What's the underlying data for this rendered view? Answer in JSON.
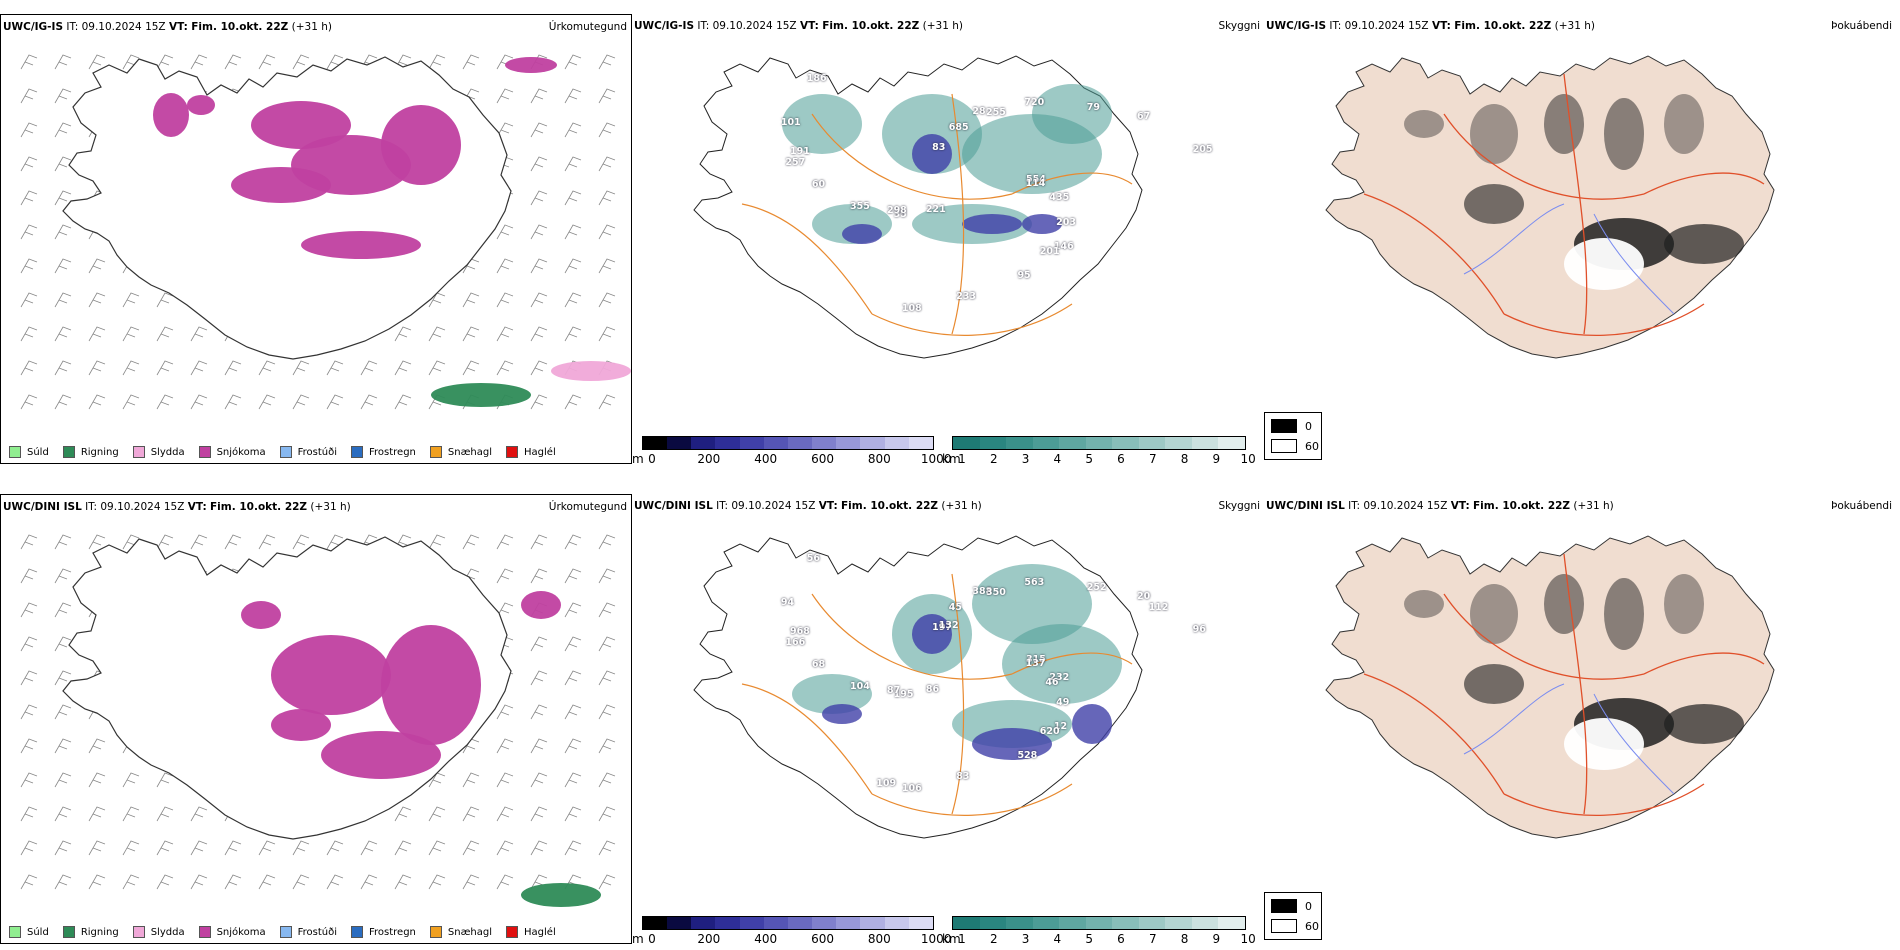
{
  "rows": [
    {
      "id": "igis",
      "model": "UWC/IG-IS",
      "it_label": "IT:",
      "it_value": "09.10.2024 15Z",
      "vt_label": "VT:",
      "vt_value": "Fim. 10.okt. 22Z",
      "lead": "(+31 h)",
      "panels": {
        "precip": {
          "variable": "Úrkomutegund"
        },
        "vis": {
          "variable": "Skyggni",
          "labels": [
            "554",
            "35",
            "28",
            "146",
            "257",
            "67",
            "108",
            "83",
            "435",
            "355",
            "720",
            "95",
            "101",
            "205",
            "221",
            "685",
            "203",
            "60",
            "79",
            "233",
            "186",
            "114",
            "298",
            "255",
            "201",
            "191"
          ]
        },
        "fog": {
          "variable": "Þokuábendi"
        }
      }
    },
    {
      "id": "dini",
      "model": "UWC/DINI ISL",
      "it_label": "IT:",
      "it_value": "09.10.2024 15Z",
      "vt_label": "VT:",
      "vt_value": "Fim. 10.okt. 22Z",
      "lead": "(+31 h)",
      "panels": {
        "precip": {
          "variable": "Úrkomutegund"
        },
        "vis": {
          "variable": "Skyggni",
          "labels": [
            "315",
            "195",
            "388",
            "12",
            "166",
            "20",
            "106",
            "197",
            "232",
            "104",
            "563",
            "528",
            "94",
            "96",
            "86",
            "45",
            "49",
            "68",
            "252",
            "83",
            "56",
            "137",
            "87",
            "350",
            "620",
            "968",
            "112",
            "109",
            "132",
            "46"
          ]
        },
        "fog": {
          "variable": "Þokuábendi"
        }
      }
    }
  ],
  "precip_legend": [
    {
      "label": "Súld",
      "color": "#90ee90"
    },
    {
      "label": "Rigning",
      "color": "#2e8b57"
    },
    {
      "label": "Slydda",
      "color": "#f0a8d8"
    },
    {
      "label": "Snjókoma",
      "color": "#c040a0"
    },
    {
      "label": "Frostúði",
      "color": "#87b8f0"
    },
    {
      "label": "Frostregn",
      "color": "#2a6cc0"
    },
    {
      "label": "Snæhagl",
      "color": "#f0a020"
    },
    {
      "label": "Haglél",
      "color": "#e01010"
    }
  ],
  "ceiling_bar": {
    "unit": "m",
    "ticks": [
      "0",
      "200",
      "400",
      "600",
      "800",
      "1000"
    ],
    "colors": [
      "#000000",
      "#0a0a40",
      "#1f1f80",
      "#2e2e98",
      "#4040a8",
      "#5555b5",
      "#6a6ac0",
      "#8080cc",
      "#9898d8",
      "#b0b0e2",
      "#c8c8ec",
      "#dcdcf4"
    ]
  },
  "visibility_bar": {
    "unit": "km",
    "ticks": [
      "1",
      "2",
      "3",
      "4",
      "5",
      "6",
      "7",
      "8",
      "9",
      "10"
    ],
    "colors": [
      "#1e7a74",
      "#2a8680",
      "#3a918a",
      "#4c9c96",
      "#5fa7a1",
      "#73b2ad",
      "#88beb9",
      "#9ec9c5",
      "#b4d5d2",
      "#cbe1df",
      "#e2eeed"
    ]
  },
  "fog_legend": [
    {
      "label": "0",
      "color": "#000000"
    },
    {
      "label": "60",
      "color": "#ffffff"
    }
  ]
}
